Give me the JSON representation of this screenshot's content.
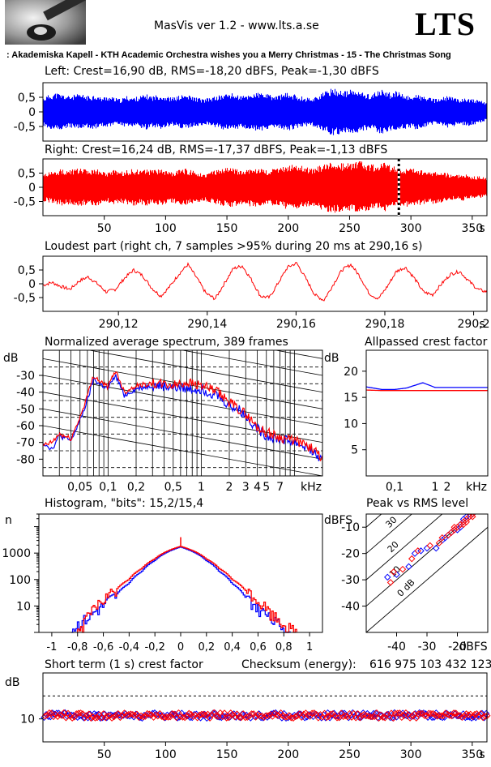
{
  "header": {
    "app_title": "MasVis ver 1.2 - www.lts.a.se",
    "brand": "LTS",
    "track": ": Akademiska Kapell - KTH Academic Orchestra wishes you a Merry Christmas - 15 - The Christmas Song"
  },
  "colors": {
    "left": "#0000ff",
    "right": "#ff0000",
    "axis": "#000000"
  },
  "chart_data": [
    {
      "id": "left_waveform",
      "type": "area",
      "title": "Left: Crest=16,90 dB, RMS=-18,20 dBFS, Peak=-1,30 dBFS",
      "ylim": [
        -1,
        1
      ],
      "yticks": [
        "0,5",
        "0",
        "-0,5"
      ],
      "duration_s": 362,
      "envelope_amplitude": [
        0.45,
        0.55,
        0.6,
        0.55,
        0.5,
        0.55,
        0.55,
        0.5,
        0.55,
        0.45,
        0.5,
        0.45,
        0.4,
        0.5,
        0.45,
        0.5,
        0.55,
        0.5,
        0.55,
        0.5,
        0.45,
        0.5,
        0.55,
        0.5,
        0.45,
        0.4,
        0.45,
        0.5,
        0.55,
        0.6,
        0.55,
        0.5,
        0.55,
        0.6,
        0.6,
        0.55,
        0.5,
        0.55,
        0.6,
        0.55,
        0.5,
        0.45,
        0.45,
        0.55,
        0.65,
        0.75,
        0.7,
        0.65,
        0.7,
        0.65,
        0.6,
        0.55,
        0.65,
        0.7,
        0.6,
        0.65,
        0.55,
        0.5,
        0.55,
        0.5,
        0.45,
        0.4,
        0.45,
        0.5,
        0.45,
        0.4,
        0.45,
        0.4,
        0.35,
        0.3
      ]
    },
    {
      "id": "right_waveform",
      "type": "area",
      "title": "Right: Crest=16,24 dB, RMS=-17,37 dBFS, Peak=-1,13 dBFS",
      "ylim": [
        -1,
        1
      ],
      "yticks": [
        "0,5",
        "0",
        "-0,5"
      ],
      "xticks": [
        "50",
        "100",
        "150",
        "200",
        "250",
        "300",
        "350",
        "s"
      ],
      "xtick_values": [
        50,
        100,
        150,
        200,
        250,
        300,
        350
      ],
      "duration_s": 362,
      "loudest_marker_s": 290.16,
      "envelope_amplitude": [
        0.45,
        0.5,
        0.55,
        0.6,
        0.55,
        0.6,
        0.6,
        0.55,
        0.6,
        0.55,
        0.5,
        0.55,
        0.5,
        0.55,
        0.6,
        0.55,
        0.6,
        0.55,
        0.6,
        0.55,
        0.5,
        0.55,
        0.6,
        0.55,
        0.5,
        0.45,
        0.5,
        0.55,
        0.6,
        0.65,
        0.6,
        0.55,
        0.6,
        0.65,
        0.6,
        0.55,
        0.6,
        0.65,
        0.7,
        0.75,
        0.7,
        0.65,
        0.6,
        0.7,
        0.8,
        0.85,
        0.8,
        0.75,
        0.8,
        0.85,
        0.8,
        0.75,
        0.7,
        0.8,
        0.7,
        0.65,
        0.6,
        0.65,
        0.6,
        0.55,
        0.5,
        0.55,
        0.5,
        0.45,
        0.4,
        0.45,
        0.4,
        0.35,
        0.35,
        0.3
      ]
    },
    {
      "id": "loudest_part",
      "type": "line",
      "title": "Loudest part (right ch, 7 samples >95% during 20 ms at 290,16 s)",
      "ylim": [
        -1,
        1
      ],
      "yticks": [
        "0,5",
        "0",
        "-0,5"
      ],
      "xlim": [
        290.103,
        290.203
      ],
      "xticks": [
        "290,12",
        "290,14",
        "290,16",
        "290,18",
        "290,2",
        "s"
      ],
      "xtick_values": [
        290.12,
        290.14,
        290.16,
        290.18,
        290.2
      ],
      "cycle_periods": 11,
      "points": [
        -0.05,
        0.05,
        -0.1,
        -0.2,
        0.1,
        0.25,
        0.0,
        -0.3,
        -0.2,
        0.2,
        0.5,
        0.3,
        -0.15,
        -0.45,
        -0.1,
        0.35,
        0.7,
        0.2,
        -0.35,
        -0.55,
        0.0,
        0.55,
        0.65,
        0.15,
        -0.45,
        -0.5,
        0.05,
        0.6,
        0.75,
        0.2,
        -0.4,
        -0.6,
        -0.05,
        0.5,
        0.7,
        0.25,
        -0.35,
        -0.55,
        -0.1,
        0.45,
        0.6,
        0.2,
        -0.3,
        -0.4,
        0.0,
        0.35,
        0.45,
        0.1,
        -0.2,
        -0.3
      ]
    },
    {
      "id": "spectrum",
      "type": "line",
      "title": "Normalized average spectrum, 389 frames",
      "ylabel": "dB",
      "xlabel": "kHz",
      "ylim": [
        -90,
        -15
      ],
      "yticks": [
        "-30",
        "-40",
        "-50",
        "-60",
        "-70",
        "-80"
      ],
      "ytick_values": [
        -30,
        -40,
        -50,
        -60,
        -70,
        -80
      ],
      "xticks": [
        "0,05",
        "0,1",
        "0,2",
        "0,5",
        "1",
        "2",
        "3",
        "4",
        "5",
        "7",
        "kHz"
      ],
      "xtick_values": [
        0.05,
        0.1,
        0.2,
        0.5,
        1,
        2,
        3,
        4,
        5,
        7
      ],
      "xlim": [
        0.02,
        20
      ],
      "series": [
        {
          "channel": "left",
          "x": [
            0.02,
            0.025,
            0.03,
            0.04,
            0.05,
            0.06,
            0.07,
            0.08,
            0.1,
            0.12,
            0.15,
            0.2,
            0.3,
            0.5,
            0.7,
            1,
            1.5,
            2,
            2.5,
            3,
            4,
            5,
            7,
            10,
            15,
            20
          ],
          "y": [
            -70,
            -74,
            -66,
            -69,
            -57,
            -45,
            -32,
            -35,
            -38,
            -30,
            -42,
            -38,
            -36,
            -37,
            -38,
            -38,
            -42,
            -48,
            -50,
            -54,
            -62,
            -66,
            -68,
            -70,
            -74,
            -82
          ]
        },
        {
          "channel": "right",
          "x": [
            0.02,
            0.025,
            0.03,
            0.04,
            0.05,
            0.06,
            0.07,
            0.08,
            0.1,
            0.12,
            0.15,
            0.2,
            0.3,
            0.5,
            0.7,
            1,
            1.5,
            2,
            2.5,
            3,
            4,
            5,
            7,
            10,
            15,
            20
          ],
          "y": [
            -72,
            -70,
            -65,
            -68,
            -55,
            -42,
            -30,
            -33,
            -37,
            -27,
            -40,
            -36,
            -35,
            -36,
            -34,
            -36,
            -40,
            -46,
            -50,
            -53,
            -61,
            -64,
            -67,
            -69,
            -73,
            -80
          ]
        }
      ]
    },
    {
      "id": "allpassed_crest",
      "type": "line",
      "title": "Allpassed crest factor",
      "ylabel": "dB",
      "xlabel": "kHz",
      "ylim": [
        0,
        24
      ],
      "yticks": [
        "20",
        "15",
        "10",
        "5"
      ],
      "ytick_values": [
        20,
        15,
        10,
        5
      ],
      "xticks": [
        "0,1",
        "1",
        "2",
        "kHz"
      ],
      "xtick_values": [
        0.1,
        1,
        2
      ],
      "xlim": [
        0.02,
        20
      ],
      "series": [
        {
          "channel": "left",
          "x": [
            0.02,
            0.05,
            0.1,
            0.2,
            0.5,
            1,
            2,
            5,
            10,
            20
          ],
          "y": [
            17,
            16.5,
            16.5,
            16.8,
            17.8,
            16.9,
            16.9,
            16.9,
            16.9,
            16.9
          ]
        },
        {
          "channel": "right",
          "x": [
            0.02,
            0.05,
            0.1,
            0.2,
            0.5,
            1,
            2,
            5,
            10,
            20
          ],
          "y": [
            16.4,
            16.3,
            16.3,
            16.3,
            16.3,
            16.3,
            16.3,
            16.3,
            16.3,
            16.3
          ]
        }
      ]
    },
    {
      "id": "histogram",
      "type": "line",
      "title": "Histogram, \"bits\": 15,2/15,4",
      "ylabel": "n",
      "scale": "log",
      "ylim": [
        1,
        30000
      ],
      "yticks": [
        "1000",
        "100",
        "10"
      ],
      "ytick_values": [
        1000,
        100,
        10
      ],
      "xlim": [
        -1.1,
        1.1
      ],
      "xticks": [
        "-1",
        "-0,8",
        "-0,6",
        "-0,4",
        "-0,2",
        "0",
        "0,2",
        "0,4",
        "0,6",
        "0,8",
        "1"
      ],
      "xtick_values": [
        -1,
        -0.8,
        -0.6,
        -0.4,
        -0.2,
        0,
        0.2,
        0.4,
        0.6,
        0.8,
        1
      ],
      "series": [
        {
          "channel": "left",
          "x": [
            -0.85,
            -0.8,
            -0.7,
            -0.6,
            -0.5,
            -0.4,
            -0.3,
            -0.2,
            -0.1,
            0,
            0.1,
            0.2,
            0.3,
            0.4,
            0.5,
            0.6,
            0.7,
            0.8,
            0.85
          ],
          "y": [
            1,
            2,
            4,
            10,
            25,
            70,
            200,
            520,
            1100,
            1700,
            1100,
            520,
            200,
            70,
            22,
            8,
            3,
            1.5,
            1
          ]
        },
        {
          "channel": "right",
          "x": [
            -0.8,
            -0.75,
            -0.7,
            -0.6,
            -0.5,
            -0.4,
            -0.3,
            -0.2,
            -0.1,
            0,
            0.1,
            0.2,
            0.3,
            0.4,
            0.5,
            0.6,
            0.7,
            0.8,
            0.9
          ],
          "y": [
            1,
            2,
            5,
            15,
            40,
            100,
            260,
            600,
            1200,
            1800,
            1200,
            600,
            260,
            100,
            40,
            15,
            5,
            2,
            1
          ]
        }
      ],
      "zero_spike": 4000
    },
    {
      "id": "peak_vs_rms",
      "type": "scatter",
      "title": "Peak vs RMS level",
      "ylabel": "dBFS",
      "xlabel": "dBFS",
      "xlim": [
        -50,
        -10
      ],
      "ylim": [
        -50,
        -5
      ],
      "xticks": [
        "-40",
        "-30",
        "-20",
        "dBFS"
      ],
      "xtick_values": [
        -40,
        -30,
        -20
      ],
      "yticks": [
        "-10",
        "-20",
        "-30",
        "-40"
      ],
      "ytick_values": [
        -10,
        -20,
        -30,
        -40
      ],
      "crest_lines": [
        "40",
        "30",
        "20",
        "10",
        "0 dB"
      ],
      "crest_line_values": [
        40,
        30,
        20,
        10,
        0
      ],
      "series": [
        {
          "channel": "left",
          "x": [
            -43,
            -40,
            -36,
            -34,
            -32,
            -30,
            -27,
            -25,
            -24,
            -23,
            -22,
            -21,
            -20,
            -19,
            -19,
            -18,
            -18,
            -17,
            -16,
            -15
          ],
          "y": [
            -29,
            -28,
            -25,
            -20,
            -19,
            -18,
            -18,
            -15,
            -14,
            -13,
            -12,
            -11,
            -11,
            -10,
            -9,
            -8,
            -7,
            -6,
            -6,
            -5
          ]
        },
        {
          "channel": "right",
          "x": [
            -42,
            -41,
            -38,
            -35,
            -33,
            -29,
            -26,
            -25,
            -23,
            -22,
            -21,
            -21,
            -20,
            -19,
            -18,
            -18,
            -17,
            -17,
            -16,
            -15,
            -15
          ],
          "y": [
            -31,
            -27,
            -26,
            -22,
            -19,
            -17,
            -16,
            -14,
            -13,
            -12,
            -11,
            -10,
            -10,
            -9,
            -9,
            -8,
            -8,
            -7,
            -6,
            -6,
            -5
          ]
        }
      ]
    },
    {
      "id": "short_term_crest",
      "type": "scatter",
      "title": "Short term (1 s) crest factor",
      "checksum_label": "Checksum (energy):",
      "checksum_value": "616 975 103 432 123",
      "ylabel": "dB",
      "ylim": [
        0,
        30
      ],
      "yticks": [
        "10"
      ],
      "ytick_values": [
        10
      ],
      "dashed_level": 20,
      "xlim": [
        0,
        362
      ],
      "xticks": [
        "50",
        "100",
        "150",
        "200",
        "250",
        "300",
        "350",
        "s"
      ],
      "xtick_values": [
        50,
        100,
        150,
        200,
        250,
        300,
        350
      ],
      "mean_crest": 11.5,
      "spread": 1.2
    }
  ]
}
